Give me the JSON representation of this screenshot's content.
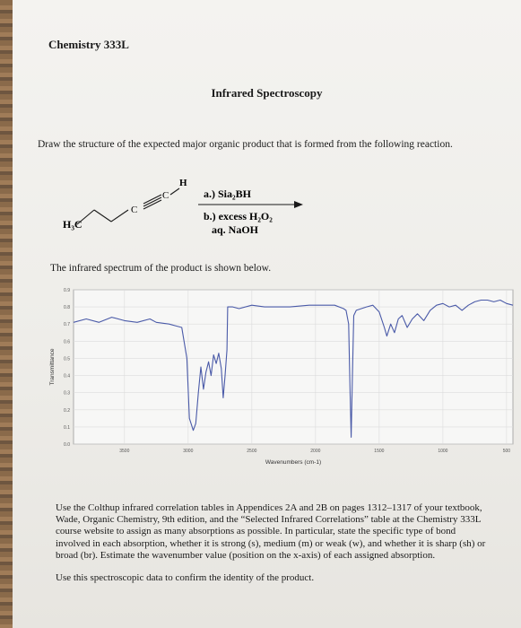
{
  "header": {
    "course": "Chemistry 333L",
    "title": "Infrared Spectroscopy"
  },
  "question": {
    "prompt": "Draw the structure of the expected major organic product that is formed from the following reaction."
  },
  "reaction": {
    "reactant_labels": {
      "methyl": "H₃C",
      "carbon1": "C",
      "carbon2": "C",
      "hydrogen": "H"
    },
    "reagent_a": "a.) Sia₂BH",
    "reagent_b": "b.) excess H₂O₂",
    "reagent_b2": "aq. NaOH"
  },
  "spectrum_intro": "The infrared spectrum of the product is shown below.",
  "chart_data": {
    "type": "line",
    "title": "",
    "xlabel": "Wavenumbers (cm-1)",
    "ylabel": "Transmittance",
    "xlim": [
      3900,
      450
    ],
    "ylim": [
      0,
      0.9
    ],
    "x_ticks": [
      3500,
      3000,
      2500,
      2000,
      1500,
      1000,
      500
    ],
    "y_ticks": [
      "0.0",
      "0.1",
      "0.2",
      "0.3",
      "0.4",
      "0.5",
      "0.6",
      "0.7",
      "0.8",
      "0.9"
    ],
    "grid": true,
    "series": [
      {
        "color": "#4a5aa8",
        "x": [
          3900,
          3800,
          3700,
          3600,
          3500,
          3400,
          3300,
          3250,
          3150,
          3100,
          3050,
          3010,
          2990,
          2960,
          2940,
          2920,
          2900,
          2880,
          2860,
          2840,
          2820,
          2800,
          2780,
          2760,
          2740,
          2725,
          2710,
          2695,
          2690,
          2650,
          2600,
          2500,
          2400,
          2200,
          2050,
          1950,
          1850,
          1780,
          1760,
          1740,
          1730,
          1720,
          1710,
          1700,
          1680,
          1600,
          1550,
          1500,
          1460,
          1440,
          1410,
          1380,
          1350,
          1320,
          1280,
          1240,
          1200,
          1150,
          1100,
          1050,
          1000,
          950,
          900,
          850,
          800,
          750,
          700,
          650,
          600,
          550,
          500,
          450
        ],
        "y": [
          0.71,
          0.73,
          0.71,
          0.74,
          0.72,
          0.71,
          0.73,
          0.71,
          0.7,
          0.69,
          0.68,
          0.5,
          0.15,
          0.08,
          0.12,
          0.3,
          0.45,
          0.32,
          0.42,
          0.48,
          0.4,
          0.52,
          0.47,
          0.53,
          0.44,
          0.27,
          0.4,
          0.55,
          0.8,
          0.8,
          0.79,
          0.81,
          0.8,
          0.8,
          0.81,
          0.81,
          0.81,
          0.79,
          0.78,
          0.7,
          0.35,
          0.04,
          0.4,
          0.75,
          0.78,
          0.8,
          0.81,
          0.77,
          0.68,
          0.63,
          0.7,
          0.65,
          0.73,
          0.75,
          0.68,
          0.73,
          0.76,
          0.72,
          0.78,
          0.81,
          0.82,
          0.8,
          0.81,
          0.78,
          0.81,
          0.83,
          0.84,
          0.84,
          0.83,
          0.84,
          0.82,
          0.81
        ]
      }
    ]
  },
  "instructions": {
    "p1": "Use the Colthup infrared correlation tables in Appendices 2A and 2B on pages 1312–1317 of your textbook, Wade, Organic Chemistry, 9th edition, and the “Selected Infrared Correlations” table at the Chemistry 333L course website to assign as many absorptions as possible. In particular, state the specific type of bond involved in each absorption, whether it is strong (s), medium (m) or weak (w), and whether it is sharp (sh) or broad (br). Estimate the wavenumber value (position on the x-axis) of each assigned absorption.",
    "p2": "Use this spectroscopic data to confirm the identity of the product."
  }
}
